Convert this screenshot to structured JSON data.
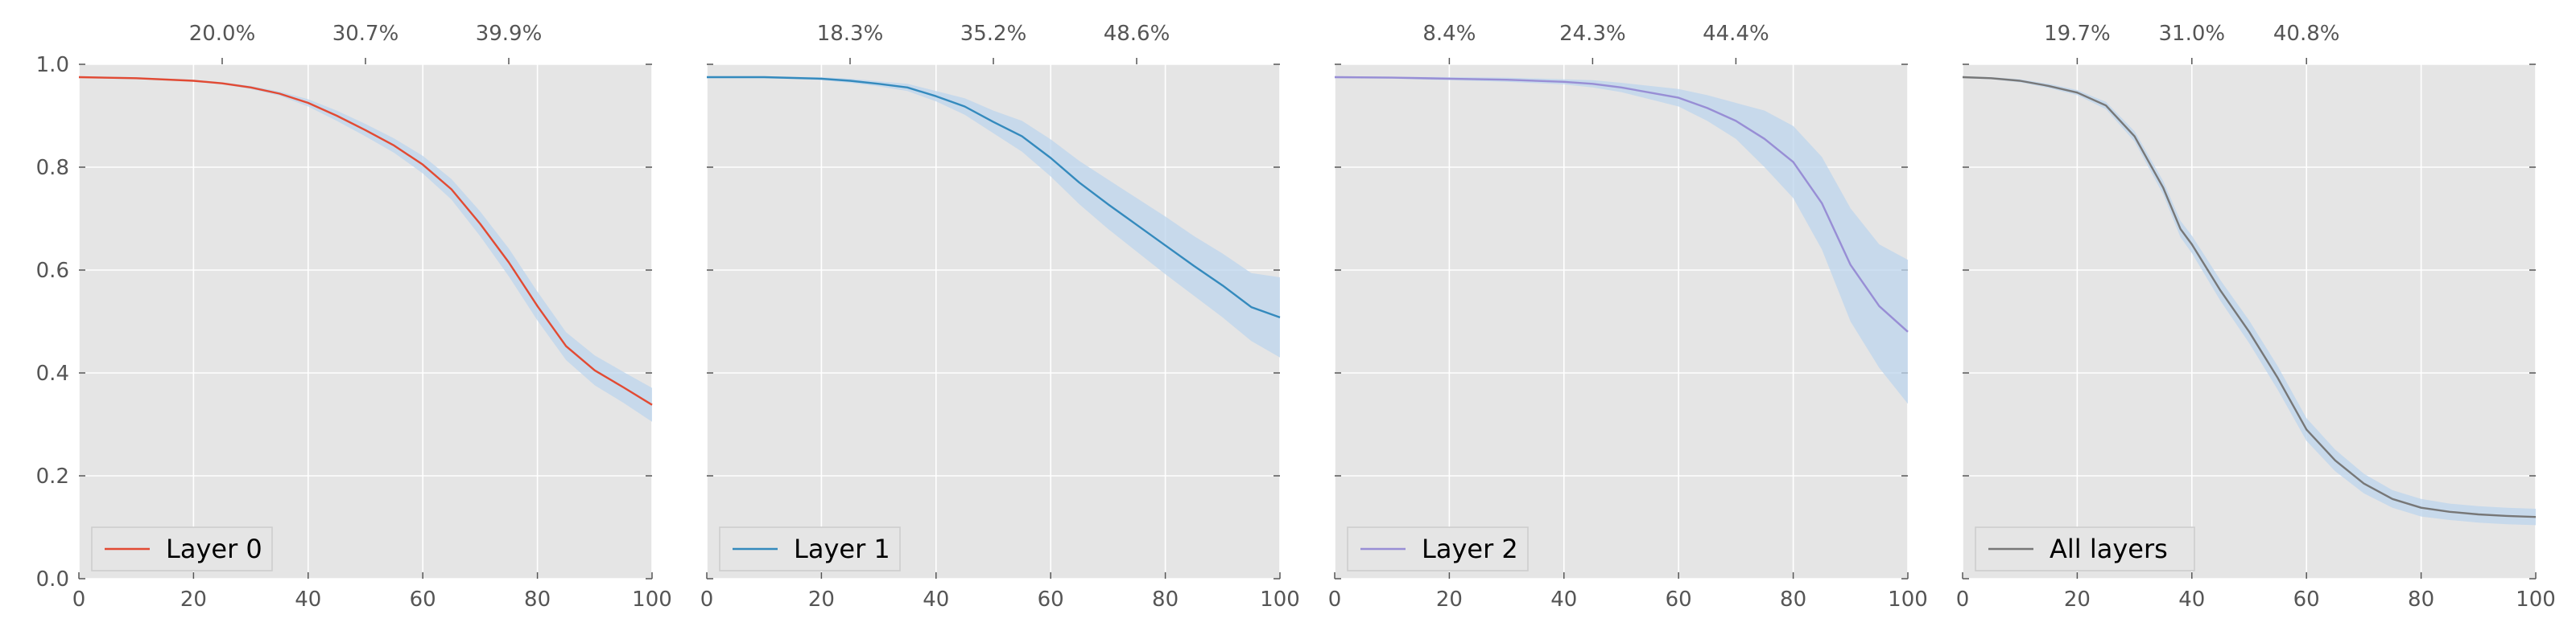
{
  "chart_data": [
    {
      "type": "line",
      "xlim": [
        0,
        100
      ],
      "ylim": [
        0,
        1.0
      ],
      "x_ticks": [
        0,
        20,
        40,
        60,
        80,
        100
      ],
      "y_ticks": [
        0.0,
        0.2,
        0.4,
        0.6,
        0.8,
        1.0
      ],
      "top_axis_ticks": [
        {
          "x": 25,
          "label": "20.0%"
        },
        {
          "x": 50,
          "label": "30.7%"
        },
        {
          "x": 75,
          "label": "39.9%"
        }
      ],
      "legend": "lower-left",
      "grid": true,
      "series": [
        {
          "name": "Layer 0",
          "color": "#E24A33",
          "x": [
            0,
            10,
            20,
            25,
            30,
            35,
            40,
            45,
            50,
            55,
            60,
            65,
            70,
            75,
            80,
            85,
            90,
            95,
            100
          ],
          "y": [
            0.975,
            0.973,
            0.968,
            0.963,
            0.955,
            0.943,
            0.925,
            0.9,
            0.872,
            0.842,
            0.805,
            0.757,
            0.69,
            0.615,
            0.53,
            0.452,
            0.405,
            0.372,
            0.338
          ],
          "band_lower": [
            0.973,
            0.971,
            0.966,
            0.961,
            0.952,
            0.939,
            0.918,
            0.89,
            0.86,
            0.828,
            0.788,
            0.737,
            0.666,
            0.588,
            0.502,
            0.425,
            0.376,
            0.342,
            0.305
          ],
          "band_upper": [
            0.977,
            0.975,
            0.97,
            0.965,
            0.958,
            0.947,
            0.932,
            0.91,
            0.884,
            0.856,
            0.822,
            0.777,
            0.714,
            0.642,
            0.558,
            0.479,
            0.434,
            0.402,
            0.371
          ]
        }
      ]
    },
    {
      "type": "line",
      "xlim": [
        0,
        100
      ],
      "ylim": [
        0,
        1.0
      ],
      "x_ticks": [
        0,
        20,
        40,
        60,
        80,
        100
      ],
      "y_ticks": [
        0.0,
        0.2,
        0.4,
        0.6,
        0.8,
        1.0
      ],
      "top_axis_ticks": [
        {
          "x": 25,
          "label": "18.3%"
        },
        {
          "x": 50,
          "label": "35.2%"
        },
        {
          "x": 75,
          "label": "48.6%"
        }
      ],
      "legend": "lower-left",
      "grid": true,
      "series": [
        {
          "name": "Layer 1",
          "color": "#348ABD",
          "x": [
            0,
            10,
            20,
            25,
            30,
            35,
            40,
            45,
            50,
            55,
            60,
            65,
            70,
            75,
            80,
            85,
            90,
            95,
            100
          ],
          "y": [
            0.975,
            0.975,
            0.972,
            0.968,
            0.962,
            0.955,
            0.938,
            0.918,
            0.888,
            0.86,
            0.818,
            0.77,
            0.728,
            0.688,
            0.648,
            0.608,
            0.57,
            0.528,
            0.508
          ],
          "band_lower": [
            0.973,
            0.973,
            0.969,
            0.964,
            0.957,
            0.948,
            0.928,
            0.902,
            0.866,
            0.83,
            0.782,
            0.728,
            0.68,
            0.636,
            0.592,
            0.55,
            0.508,
            0.462,
            0.43
          ],
          "band_upper": [
            0.977,
            0.977,
            0.975,
            0.972,
            0.967,
            0.962,
            0.948,
            0.934,
            0.91,
            0.89,
            0.854,
            0.812,
            0.776,
            0.74,
            0.704,
            0.666,
            0.632,
            0.594,
            0.586
          ]
        }
      ]
    },
    {
      "type": "line",
      "xlim": [
        0,
        100
      ],
      "ylim": [
        0,
        1.0
      ],
      "x_ticks": [
        0,
        20,
        40,
        60,
        80,
        100
      ],
      "y_ticks": [
        0.0,
        0.2,
        0.4,
        0.6,
        0.8,
        1.0
      ],
      "top_axis_ticks": [
        {
          "x": 20,
          "label": "8.4%"
        },
        {
          "x": 45,
          "label": "24.3%"
        },
        {
          "x": 70,
          "label": "44.4%"
        }
      ],
      "legend": "lower-left",
      "grid": true,
      "series": [
        {
          "name": "Layer 2",
          "color": "#988ED5",
          "x": [
            0,
            10,
            20,
            30,
            40,
            45,
            50,
            55,
            60,
            65,
            70,
            75,
            80,
            85,
            90,
            95,
            100
          ],
          "y": [
            0.975,
            0.974,
            0.972,
            0.97,
            0.966,
            0.962,
            0.955,
            0.945,
            0.935,
            0.915,
            0.89,
            0.855,
            0.81,
            0.73,
            0.61,
            0.53,
            0.48
          ],
          "band_lower": [
            0.973,
            0.972,
            0.969,
            0.966,
            0.961,
            0.955,
            0.946,
            0.932,
            0.918,
            0.89,
            0.855,
            0.8,
            0.74,
            0.64,
            0.5,
            0.41,
            0.34
          ],
          "band_upper": [
            0.977,
            0.976,
            0.975,
            0.974,
            0.971,
            0.969,
            0.964,
            0.958,
            0.952,
            0.94,
            0.925,
            0.91,
            0.88,
            0.82,
            0.72,
            0.65,
            0.62
          ]
        }
      ]
    },
    {
      "type": "line",
      "xlim": [
        0,
        100
      ],
      "ylim": [
        0,
        1.0
      ],
      "x_ticks": [
        0,
        20,
        40,
        60,
        80,
        100
      ],
      "y_ticks": [
        0.0,
        0.2,
        0.4,
        0.6,
        0.8,
        1.0
      ],
      "top_axis_ticks": [
        {
          "x": 20,
          "label": "19.7%"
        },
        {
          "x": 40,
          "label": "31.0%"
        },
        {
          "x": 60,
          "label": "40.8%"
        }
      ],
      "legend": "lower-left",
      "grid": true,
      "series": [
        {
          "name": "All layers",
          "color": "#777777",
          "x": [
            0,
            5,
            10,
            15,
            20,
            25,
            30,
            35,
            38,
            40,
            45,
            50,
            55,
            60,
            65,
            70,
            75,
            80,
            85,
            90,
            95,
            100
          ],
          "y": [
            0.975,
            0.973,
            0.968,
            0.958,
            0.945,
            0.92,
            0.86,
            0.76,
            0.68,
            0.65,
            0.56,
            0.48,
            0.39,
            0.29,
            0.23,
            0.185,
            0.155,
            0.138,
            0.13,
            0.125,
            0.122,
            0.12
          ],
          "band_lower": [
            0.973,
            0.971,
            0.965,
            0.954,
            0.94,
            0.913,
            0.85,
            0.747,
            0.664,
            0.633,
            0.54,
            0.458,
            0.367,
            0.268,
            0.209,
            0.166,
            0.138,
            0.121,
            0.114,
            0.109,
            0.106,
            0.104
          ],
          "band_upper": [
            0.977,
            0.975,
            0.971,
            0.962,
            0.95,
            0.927,
            0.87,
            0.773,
            0.696,
            0.667,
            0.58,
            0.502,
            0.413,
            0.312,
            0.251,
            0.204,
            0.172,
            0.155,
            0.146,
            0.141,
            0.138,
            0.136
          ]
        }
      ]
    }
  ],
  "style": {
    "axes_bg": "#E5E5E5",
    "grid_color": "#FFFFFF",
    "band_color": "#BCD4EC",
    "tick_label_color": "#555555",
    "legend_bg": "#E5E5E5",
    "legend_border": "#CCCCCC",
    "legend_text_color": "#000000"
  }
}
